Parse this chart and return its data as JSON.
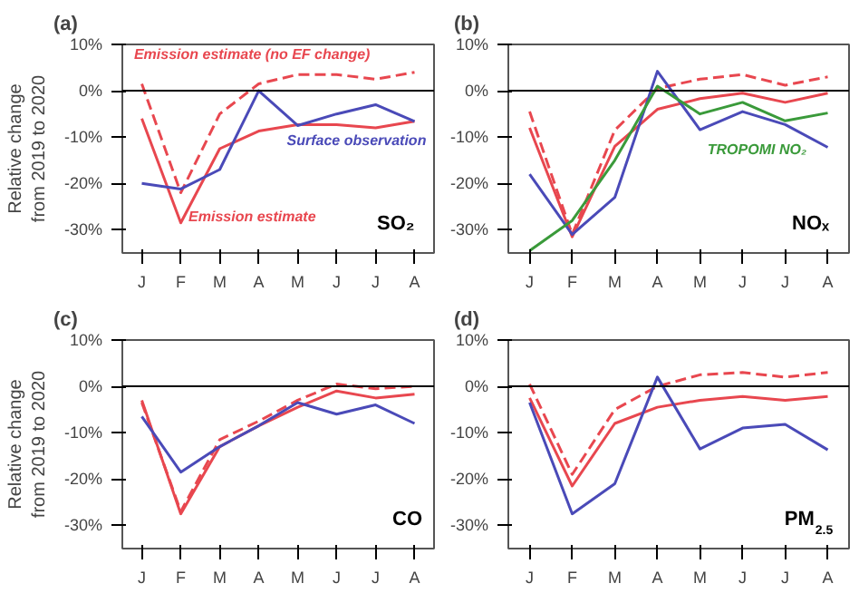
{
  "chart_data": [
    {
      "type": "line",
      "title": "(a)",
      "ylabel": "Relative change\nfrom 2019 to 2020",
      "categories": [
        "J",
        "F",
        "M",
        "A",
        "M",
        "J",
        "J",
        "A"
      ],
      "ylim": [
        -35,
        10
      ],
      "yticks": [
        {
          "value": -30,
          "label": "-30%"
        },
        {
          "value": -20,
          "label": "-20%"
        },
        {
          "value": -10,
          "label": "-10%"
        },
        {
          "value": 0,
          "label": "0%"
        },
        {
          "value": 10,
          "label": "10%"
        }
      ],
      "grid": false,
      "ref_lines": [
        {
          "axis": "y",
          "value": 0,
          "color": "#000000"
        }
      ],
      "annotations": [
        "SO₂"
      ],
      "series": [
        {
          "name": "Emission estimate",
          "color": "#e8474f",
          "line_style": "solid",
          "values": [
            -6,
            -28.5,
            -12.5,
            -8.7,
            -7.3,
            -7.3,
            -8,
            -6.6
          ]
        },
        {
          "name": "Emission estimate (no EF change)",
          "color": "#e8474f",
          "line_style": "dashed",
          "values": [
            1.5,
            -22,
            -5,
            1.5,
            3.5,
            3.5,
            2.5,
            4
          ]
        },
        {
          "name": "Surface observation",
          "color": "#4a4ab8",
          "line_style": "solid",
          "values": [
            -20,
            -21.2,
            -17,
            0,
            -7.5,
            -5,
            -3,
            -6.6
          ]
        }
      ]
    },
    {
      "type": "line",
      "title": "(b)",
      "categories": [
        "J",
        "F",
        "M",
        "A",
        "M",
        "J",
        "J",
        "A"
      ],
      "ylim": [
        -35,
        10
      ],
      "yticks": [
        {
          "value": -30,
          "label": "-30%"
        },
        {
          "value": -20,
          "label": "-20%"
        },
        {
          "value": -10,
          "label": "-10%"
        },
        {
          "value": 0,
          "label": "0%"
        },
        {
          "value": 10,
          "label": "10%"
        }
      ],
      "grid": false,
      "ref_lines": [
        {
          "axis": "y",
          "value": 0,
          "color": "#000000"
        }
      ],
      "annotations": [
        "NOₓ"
      ],
      "series": [
        {
          "color": "#e8474f",
          "line_style": "solid",
          "values": [
            -8,
            -31.5,
            -12,
            -4,
            -1.7,
            -0.5,
            -2.5,
            -0.5
          ]
        },
        {
          "color": "#e8474f",
          "line_style": "dashed",
          "values": [
            -4.5,
            -31,
            -8.5,
            0.5,
            2.5,
            3.5,
            1.2,
            3
          ]
        },
        {
          "color": "#4a4ab8",
          "line_style": "solid",
          "values": [
            -18,
            -31,
            -23,
            4.2,
            -8.4,
            -4.5,
            -7.3,
            -12.2
          ]
        },
        {
          "name": "TROPOMI NO₂",
          "color": "#3a9a3a",
          "line_style": "solid",
          "values": [
            -34.5,
            -28,
            -15,
            1,
            -5,
            -2.5,
            -6.5,
            -4.8
          ]
        }
      ]
    },
    {
      "type": "line",
      "title": "(c)",
      "ylabel": "Relative change\nfrom 2019 to 2020",
      "categories": [
        "J",
        "F",
        "M",
        "A",
        "M",
        "J",
        "J",
        "A"
      ],
      "ylim": [
        -35,
        10
      ],
      "yticks": [
        {
          "value": -30,
          "label": "-30%"
        },
        {
          "value": -20,
          "label": "-20%"
        },
        {
          "value": -10,
          "label": "-10%"
        },
        {
          "value": 0,
          "label": "0%"
        },
        {
          "value": 10,
          "label": "10%"
        }
      ],
      "grid": false,
      "ref_lines": [
        {
          "axis": "y",
          "value": 0,
          "color": "#000000"
        }
      ],
      "annotations": [
        "CO"
      ],
      "series": [
        {
          "color": "#e8474f",
          "line_style": "solid",
          "values": [
            -3,
            -27.5,
            -13,
            -8.5,
            -4.5,
            -1,
            -2.5,
            -1.7
          ]
        },
        {
          "color": "#e8474f",
          "line_style": "dashed",
          "values": [
            -3.5,
            -27,
            -11.5,
            -7.5,
            -3,
            0.5,
            -0.5,
            0
          ]
        },
        {
          "color": "#4a4ab8",
          "line_style": "solid",
          "values": [
            -6.5,
            -18.5,
            -13,
            -8.5,
            -3.5,
            -6,
            -4,
            -8
          ]
        }
      ]
    },
    {
      "type": "line",
      "title": "(d)",
      "categories": [
        "J",
        "F",
        "M",
        "A",
        "M",
        "J",
        "J",
        "A"
      ],
      "ylim": [
        -35,
        10
      ],
      "yticks": [
        {
          "value": -30,
          "label": "-30%"
        },
        {
          "value": -20,
          "label": "-20%"
        },
        {
          "value": -10,
          "label": "-10%"
        },
        {
          "value": 0,
          "label": "0%"
        },
        {
          "value": 10,
          "label": "10%"
        }
      ],
      "grid": false,
      "ref_lines": [
        {
          "axis": "y",
          "value": 0,
          "color": "#000000"
        }
      ],
      "annotations": [
        "PM$_{2.5}$"
      ],
      "series": [
        {
          "color": "#e8474f",
          "line_style": "solid",
          "values": [
            -2.5,
            -21.5,
            -8,
            -4.5,
            -3,
            -2.2,
            -3,
            -2.2
          ]
        },
        {
          "color": "#e8474f",
          "line_style": "dashed",
          "values": [
            0.5,
            -19,
            -5,
            0,
            2.5,
            3,
            2,
            3
          ]
        },
        {
          "color": "#4a4ab8",
          "line_style": "solid",
          "values": [
            -3.5,
            -27.5,
            -21,
            2,
            -13.5,
            -9,
            -8.2,
            -13.7
          ]
        }
      ]
    }
  ]
}
